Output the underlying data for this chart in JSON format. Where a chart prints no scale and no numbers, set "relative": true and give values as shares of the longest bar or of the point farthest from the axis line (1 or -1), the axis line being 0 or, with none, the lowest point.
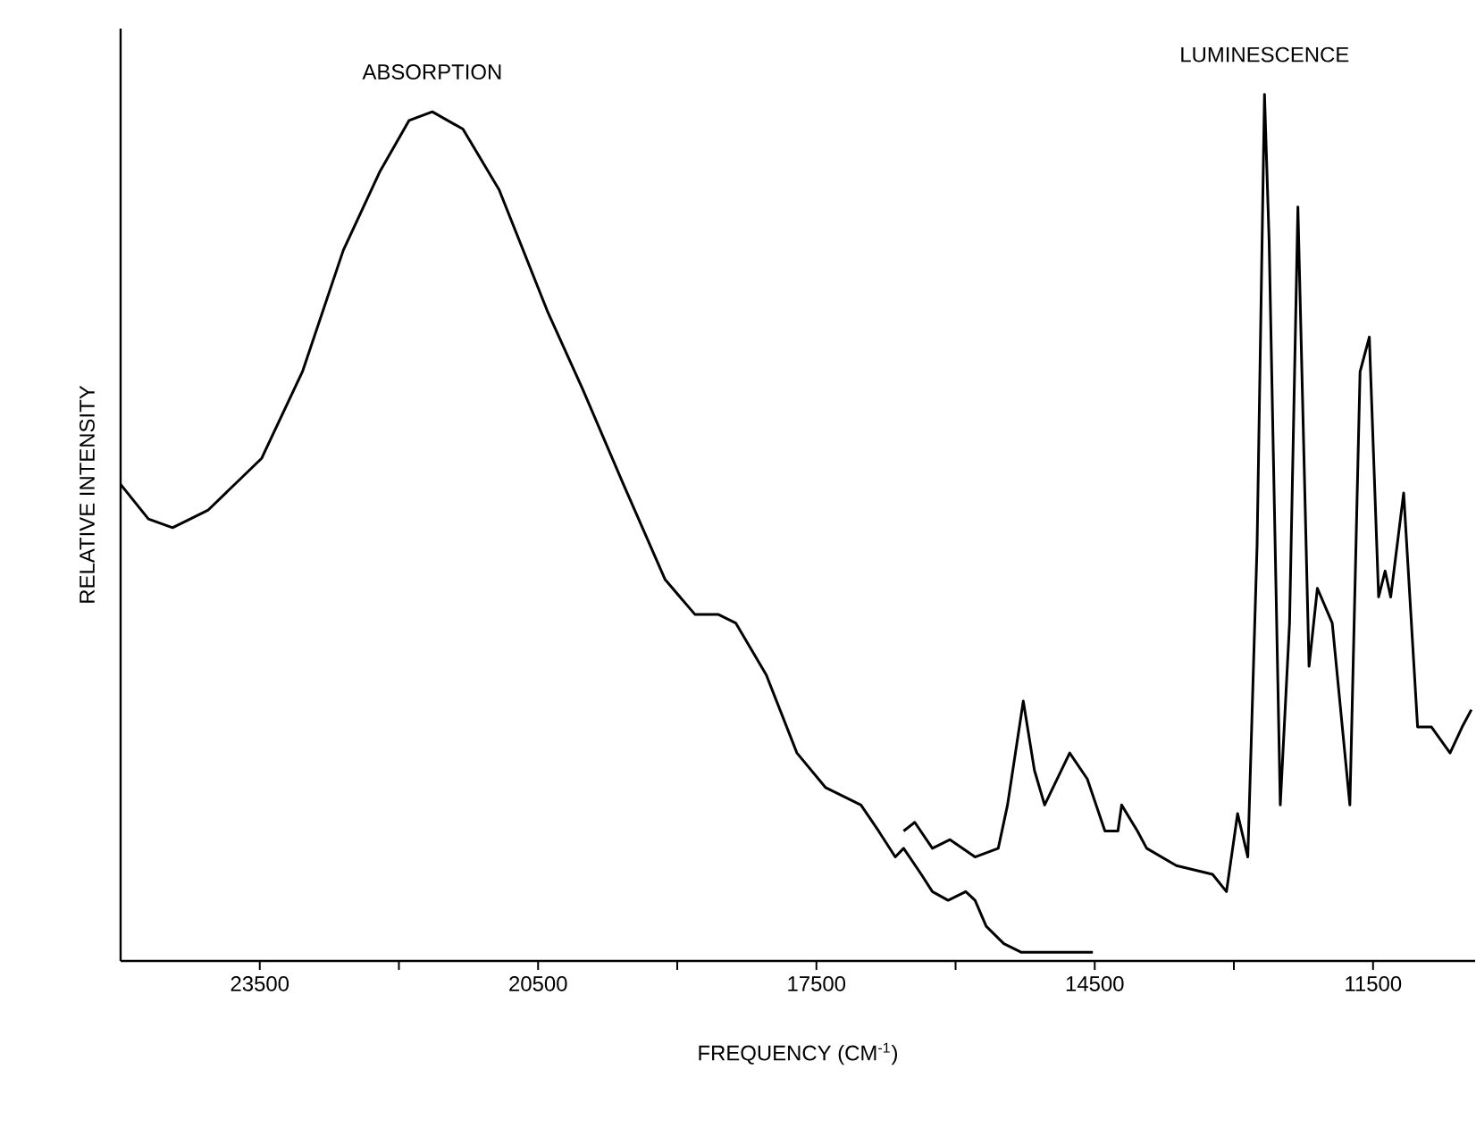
{
  "chart_data": {
    "type": "line",
    "xlabel": "FREQUENCY (CM$^{-1}$)",
    "ylabel": "RELATIVE INTENSITY",
    "relative": true,
    "legend": false,
    "xlim": [
      25000,
      10400
    ],
    "xticks": [
      23500,
      {
        "value": 22000,
        "label": null
      },
      20500,
      {
        "value": 19000,
        "label": null
      },
      17500,
      {
        "value": 16000,
        "label": null
      },
      14500,
      {
        "value": 13000,
        "label": null
      },
      11500
    ],
    "series": [
      {
        "name": "ABSORPTION",
        "color": "#000000",
        "x": [
          25000,
          24700,
          24440,
          24060,
          23480,
          23040,
          22600,
          22210,
          21890,
          21640,
          21310,
          20920,
          20400,
          20020,
          19580,
          19130,
          18810,
          18560,
          18370,
          18040,
          17710,
          17400,
          17020,
          16830,
          16650,
          16560,
          16370,
          16250,
          16080,
          15890,
          15790,
          15670,
          15480,
          15290,
          15020,
          14520
        ],
        "values": [
          0.55,
          0.51,
          0.5,
          0.52,
          0.58,
          0.68,
          0.82,
          0.91,
          0.97,
          0.98,
          0.96,
          0.89,
          0.75,
          0.66,
          0.55,
          0.44,
          0.4,
          0.4,
          0.39,
          0.33,
          0.24,
          0.2,
          0.18,
          0.15,
          0.12,
          0.13,
          0.1,
          0.08,
          0.07,
          0.08,
          0.07,
          0.04,
          0.02,
          0.01,
          0.01,
          0.01
        ]
      },
      {
        "name": "LUMINESCENCE",
        "color": "#000000",
        "x": [
          16560,
          16440,
          16250,
          16060,
          15790,
          15540,
          15440,
          15270,
          15150,
          15040,
          14770,
          14580,
          14390,
          14250,
          14210,
          14040,
          13940,
          13620,
          13230,
          13080,
          12960,
          12850,
          12750,
          12670,
          12620,
          12500,
          12400,
          12310,
          12190,
          12100,
          11940,
          11750,
          11640,
          11540,
          11440,
          11370,
          11310,
          11170,
          11020,
          10870,
          10670,
          10540,
          10440
        ],
        "values": [
          0.15,
          0.16,
          0.13,
          0.14,
          0.12,
          0.13,
          0.18,
          0.3,
          0.22,
          0.18,
          0.24,
          0.21,
          0.15,
          0.15,
          0.18,
          0.15,
          0.13,
          0.11,
          0.1,
          0.08,
          0.17,
          0.12,
          0.48,
          1.0,
          0.83,
          0.18,
          0.39,
          0.87,
          0.34,
          0.43,
          0.39,
          0.18,
          0.68,
          0.72,
          0.42,
          0.45,
          0.42,
          0.54,
          0.27,
          0.27,
          0.24,
          0.27,
          0.29
        ]
      }
    ]
  }
}
